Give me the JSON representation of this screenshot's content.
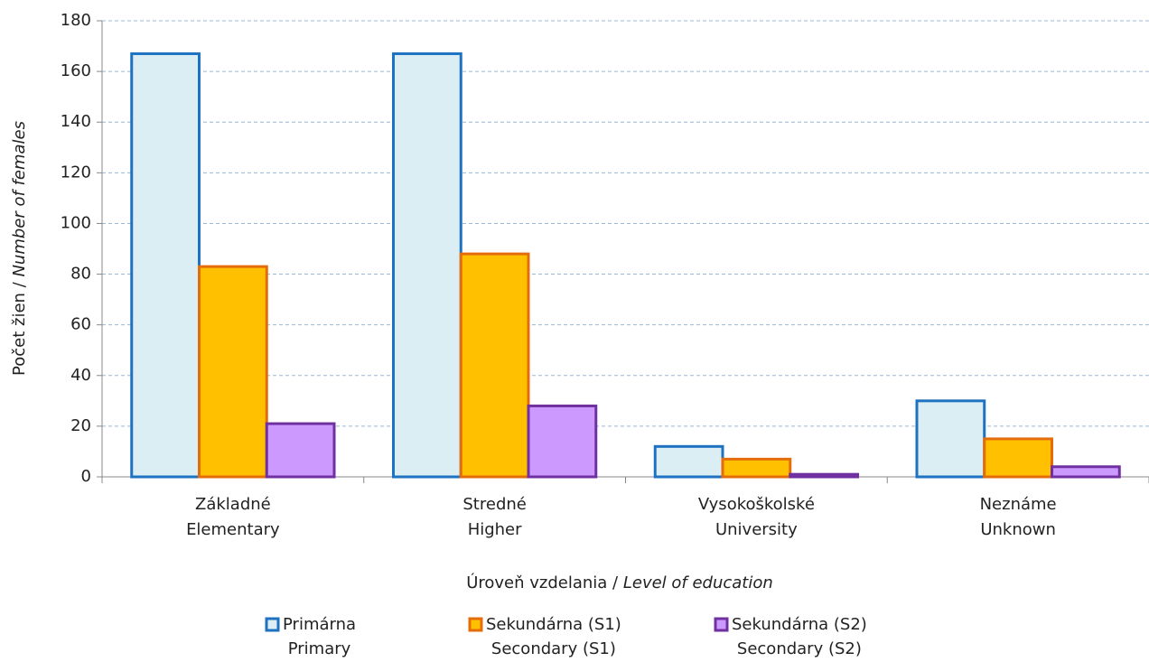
{
  "chart_data": {
    "type": "bar",
    "categories": [
      "Základné\nElementary",
      "Stredné\nHigher",
      "Vysokoškolské\nUniversity",
      "Neznáme\nUnknown"
    ],
    "series": [
      {
        "name": "Primárna\nPrimary",
        "color": "#daeef3",
        "edge": "#1f72c2",
        "values": [
          167,
          167,
          12,
          30
        ]
      },
      {
        "name": "Sekundárna (S1)\nSecondary (S1)",
        "color": "#ffc000",
        "edge": "#e46c0a",
        "values": [
          83,
          88,
          7,
          15
        ]
      },
      {
        "name": "Sekundárna (S2)\nSecondary (S2)",
        "color": "#cc99ff",
        "edge": "#7030a0",
        "values": [
          21,
          28,
          1,
          4
        ]
      }
    ],
    "ylabel": [
      "Počet žien /",
      "Number of females"
    ],
    "xlabel": [
      "Úroveň vzdelania /",
      "Level of education"
    ],
    "ylim": [
      0,
      180
    ],
    "yticks": [
      0,
      20,
      40,
      60,
      80,
      100,
      120,
      140,
      160,
      180
    ],
    "grid": true,
    "legend": "bottom"
  }
}
